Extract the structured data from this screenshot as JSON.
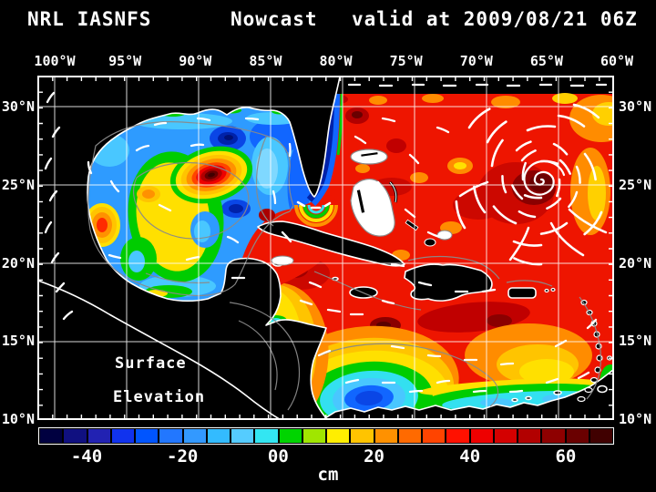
{
  "title": {
    "model": "NRL IASNFS",
    "product": "Nowcast",
    "valid": "valid at 2009/08/21 06Z"
  },
  "axes": {
    "lon_labels": [
      "100°W",
      "95°W",
      "90°W",
      "85°W",
      "80°W",
      "75°W",
      "70°W",
      "65°W",
      "60°W"
    ],
    "lat_labels_left": [
      "30°N",
      "25°N",
      "20°N",
      "15°N",
      "10°N"
    ],
    "lat_labels_right": [
      "30°N",
      "25°N",
      "20°N",
      "15°N",
      "10°N"
    ]
  },
  "map_annotation": {
    "line1": "Surface",
    "line2": "Elevation"
  },
  "colorbar": {
    "units": "cm",
    "tick_labels": [
      "-40",
      "-20",
      "00",
      "20",
      "40",
      "60"
    ],
    "range_cm": [
      -50,
      70
    ],
    "step_cm": 5,
    "colors": [
      "#000040",
      "#101080",
      "#2222b2",
      "#1133ee",
      "#0055ff",
      "#2277ff",
      "#3399ff",
      "#33bbff",
      "#55ccff",
      "#33e6f2",
      "#00d400",
      "#a0e600",
      "#ffee00",
      "#ffc400",
      "#ff9100",
      "#ff6a00",
      "#ff4400",
      "#ff1100",
      "#ee0000",
      "#d40000",
      "#b20000",
      "#8e0000",
      "#6a0000",
      "#400000"
    ]
  }
}
